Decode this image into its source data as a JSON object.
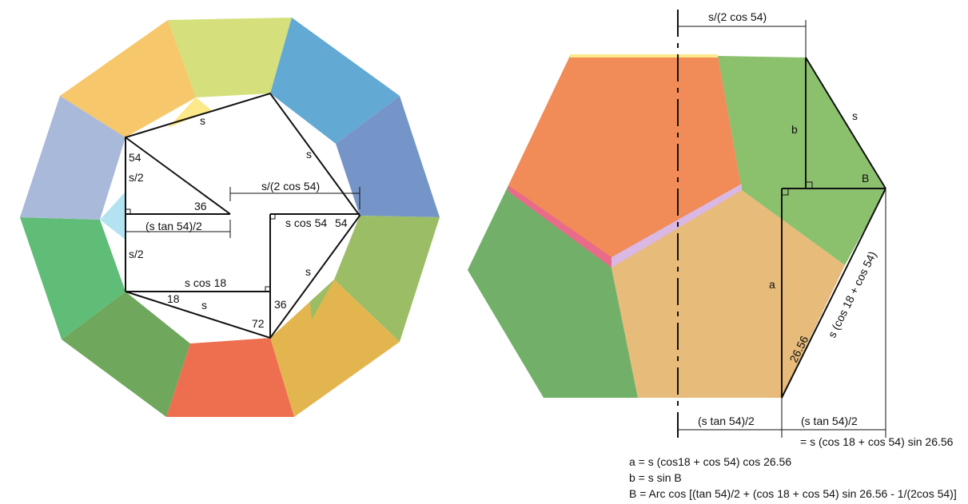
{
  "colors": {
    "left_outer": [
      "#d5e07c",
      "#62a9d4",
      "#7595c8",
      "#9abd66",
      "#e3b54f",
      "#ee6e50",
      "#6fa75c",
      "#5fbd78",
      "#a9b9da",
      "#f6c86b"
    ],
    "inner_yellow": "#fbe98a",
    "inner_cyan": "#b3e2f1",
    "inner_pink": "#f0a8c0",
    "inner_lavender": "#d9b8e4",
    "inner_red": "#f0989a",
    "right_orange": "#f18b57",
    "right_green": "#8bc06d",
    "right_green_dark": "#72b06a",
    "right_tan": "#e7bb7a",
    "right_pink_edge": "#e96b8a"
  },
  "left_labels": {
    "top_s": "s",
    "right_s": "s",
    "lower_s": "s",
    "bottom_s": "s",
    "angle_54_left": "54",
    "half_s_upper": "s/2",
    "angle_36_mid": "36",
    "tan_half": "(s tan 54)/2",
    "half_s_lower": "s/2",
    "radius": "s/(2 cos 54)",
    "s_cos_54": "s cos 54",
    "angle_54_right": "54",
    "s_cos_18": "s cos 18",
    "angle_18": "18",
    "angle_36_low": "36",
    "angle_72": "72"
  },
  "right_labels": {
    "top_dim": "s/(2 cos 54)",
    "b": "b",
    "s": "s",
    "B": "B",
    "a": "a",
    "angle_26_56": "26.56",
    "diag": "s (cos 18 + cos 54)",
    "bottom_left_dim": "(s tan 54)/2",
    "bottom_right_dim": "(s tan 54)/2",
    "bottom_right_eq": "= s (cos 18 + cos 54) sin 26.56"
  },
  "equations": {
    "line1": "a = s (cos18 + cos 54) cos 26.56",
    "line2": "b = s sin B",
    "line3": "B = Arc cos [(tan 54)/2 + (cos 18 + cos 54) sin 26.56 - 1/(2cos 54)]"
  }
}
